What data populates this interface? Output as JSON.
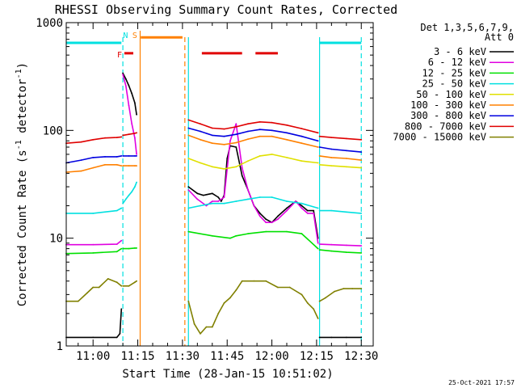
{
  "chart_data": {
    "type": "line",
    "title": "RHESSI Observing Summary Count Rates, Corrected",
    "xlabel": "Start Time (28-Jan-15 10:51:02)",
    "ylabel_main": "Corrected Count Rate (s",
    "ylabel_sup1": "-1",
    "ylabel_mid": " detector",
    "ylabel_sup2": "-1",
    "ylabel_end": ")",
    "yscale": "log",
    "ylim": [
      1,
      1000
    ],
    "xlim_min": [
      51.0,
      154.0
    ],
    "x_ticks": [
      {
        "min": 60,
        "label": "11:00"
      },
      {
        "min": 75,
        "label": "11:15"
      },
      {
        "min": 90,
        "label": "11:30"
      },
      {
        "min": 105,
        "label": "11:45"
      },
      {
        "min": 120,
        "label": "12:00"
      },
      {
        "min": 135,
        "label": "12:15"
      },
      {
        "min": 150,
        "label": "12:30"
      }
    ],
    "y_ticks": [
      {
        "v": 1,
        "label": "1"
      },
      {
        "v": 10,
        "label": "10"
      },
      {
        "v": 100,
        "label": "100"
      },
      {
        "v": 1000,
        "label": "1000"
      }
    ],
    "legend": {
      "placement": "top-right",
      "header1": "Det 1,3,5,6,7,9,",
      "header2": "Att 0"
    },
    "flag_labels": [
      {
        "label": "F",
        "min": 68.9,
        "color": "#e00000"
      },
      {
        "label": "N",
        "min": 70.9,
        "color": "#00e0e0"
      },
      {
        "label": "S",
        "min": 74.0,
        "color": "#ff8000"
      }
    ],
    "data_gaps": [
      {
        "start": 75.8,
        "end": 90.8,
        "solid_edge": "start",
        "color": "#ff8000"
      },
      {
        "start": 70.0,
        "end": 70.0,
        "dashed": true,
        "color": "#00e0e0"
      },
      {
        "start": 90.8,
        "end": 90.8,
        "dashed": true,
        "color": "#ff8000"
      },
      {
        "start": 92.0,
        "end": 92.0,
        "dashed": false,
        "color": "#00e0e0"
      },
      {
        "start": 136.0,
        "end": 136.0,
        "dashed": false,
        "color": "#00e0e0"
      },
      {
        "start": 150.0,
        "end": 150.0,
        "dashed": true,
        "color": "#00e0e0"
      }
    ],
    "flag_bars": [
      {
        "y": 650,
        "start": 51.0,
        "end": 69.5,
        "color": "#00e0e0"
      },
      {
        "y": 650,
        "start": 136.0,
        "end": 150.0,
        "color": "#00e0e0"
      },
      {
        "y": 520,
        "start": 70.5,
        "end": 73.5,
        "color": "#e00000"
      },
      {
        "y": 520,
        "start": 96.5,
        "end": 110.0,
        "color": "#e00000"
      },
      {
        "y": 520,
        "start": 114.5,
        "end": 122.0,
        "color": "#e00000"
      },
      {
        "y": 730,
        "start": 76.0,
        "end": 90.0,
        "color": "#ff8000"
      }
    ],
    "timestamp": "25-Oct-2021 17:57",
    "series": [
      {
        "name": "3 - 6 keV",
        "color": "#000000",
        "segments": [
          {
            "x": [
              51,
              60,
              68,
              69,
              69.5
            ],
            "y": [
              1.2,
              1.2,
              1.2,
              1.3,
              2.2
            ]
          },
          {
            "x": [
              70,
              71,
              72,
              73,
              74,
              74.6
            ],
            "y": [
              340,
              300,
              260,
              220,
              180,
              140
            ]
          },
          {
            "x": [
              92,
              95,
              97,
              100,
              102,
              103,
              104,
              105,
              106,
              108,
              110,
              112,
              114,
              116,
              118,
              120,
              122,
              125,
              128,
              130,
              132,
              134,
              135.5
            ],
            "y": [
              30,
              26,
              25,
              26,
              24,
              22,
              25,
              55,
              72,
              70,
              38,
              28,
              20,
              17,
              15,
              14,
              16,
              19,
              22,
              20,
              18,
              18,
              10
            ]
          },
          {
            "x": [
              136,
              140,
              145,
              150
            ],
            "y": [
              1.2,
              1.2,
              1.2,
              1.2
            ]
          }
        ]
      },
      {
        "name": "6 - 12 keV",
        "color": "#e000e0",
        "segments": [
          {
            "x": [
              51,
              60,
              68,
              69.5
            ],
            "y": [
              8.7,
              8.7,
              8.8,
              9.5
            ]
          },
          {
            "x": [
              70,
              71,
              72,
              73,
              74,
              74.6
            ],
            "y": [
              330,
              260,
              170,
              115,
              85,
              60
            ]
          },
          {
            "x": [
              92,
              95,
              98,
              100,
              102,
              104,
              106,
              108,
              110,
              112,
              114,
              116,
              118,
              120,
              122,
              125,
              128,
              130,
              132,
              134,
              135.5
            ],
            "y": [
              28,
              23,
              20,
              22,
              22,
              24,
              80,
              115,
              45,
              28,
              20,
              16,
              14,
              14,
              15,
              18,
              22,
              19,
              17,
              17,
              9
            ]
          },
          {
            "x": [
              136,
              140,
              145,
              150
            ],
            "y": [
              8.8,
              8.7,
              8.6,
              8.5
            ]
          }
        ]
      },
      {
        "name": "12 - 25 keV",
        "color": "#00e000",
        "segments": [
          {
            "x": [
              51,
              60,
              68,
              69.5
            ],
            "y": [
              7.2,
              7.3,
              7.5,
              8.0
            ]
          },
          {
            "x": [
              70,
              72,
              74,
              74.6
            ],
            "y": [
              8.0,
              8.0,
              8.1,
              8.1
            ]
          },
          {
            "x": [
              92,
              100,
              106,
              108,
              112,
              118,
              125,
              130,
              135.5
            ],
            "y": [
              11.5,
              10.5,
              10,
              10.5,
              11,
              11.5,
              11.5,
              11,
              8
            ]
          },
          {
            "x": [
              136,
              140,
              145,
              150
            ],
            "y": [
              7.8,
              7.6,
              7.4,
              7.3
            ]
          }
        ]
      },
      {
        "name": "25 - 50 keV",
        "color": "#00e0e0",
        "segments": [
          {
            "x": [
              51,
              60,
              68,
              69.5
            ],
            "y": [
              17,
              17,
              18,
              19
            ]
          },
          {
            "x": [
              70,
              71,
              72,
              73,
              74,
              74.6
            ],
            "y": [
              21,
              23,
              25,
              27,
              30,
              33
            ]
          },
          {
            "x": [
              92,
              96,
              100,
              104,
              108,
              112,
              116,
              120,
              125,
              130,
              135.5
            ],
            "y": [
              19,
              20,
              21,
              21,
              22,
              23,
              24,
              24,
              22,
              21,
              19
            ]
          },
          {
            "x": [
              136,
              140,
              145,
              150
            ],
            "y": [
              18,
              18,
              17.5,
              17
            ]
          }
        ]
      },
      {
        "name": "50 - 100 keV",
        "color": "#e0e000",
        "segments": [
          {
            "x": [
              92,
              96,
              100,
              104,
              108,
              112,
              116,
              120,
              125,
              130,
              135.5
            ],
            "y": [
              55,
              50,
              46,
              44,
              46,
              52,
              58,
              60,
              56,
              52,
              50
            ]
          },
          {
            "x": [
              136,
              140,
              145,
              150
            ],
            "y": [
              48,
              47,
              46,
              45
            ]
          }
        ]
      },
      {
        "name": "100 - 300 keV",
        "color": "#ff8000",
        "segments": [
          {
            "x": [
              51,
              56,
              60,
              64,
              68,
              69.5
            ],
            "y": [
              41,
              42,
              45,
              48,
              48,
              47
            ]
          },
          {
            "x": [
              70,
              72,
              74,
              74.6
            ],
            "y": [
              47,
              47,
              47,
              47
            ]
          },
          {
            "x": [
              92,
              96,
              100,
              104,
              108,
              112,
              116,
              120,
              125,
              130,
              135.5
            ],
            "y": [
              90,
              82,
              76,
              74,
              77,
              83,
              88,
              88,
              82,
              76,
              70
            ]
          },
          {
            "x": [
              136,
              140,
              145,
              150
            ],
            "y": [
              58,
              56,
              55,
              53
            ]
          }
        ]
      },
      {
        "name": "300 - 800 keV",
        "color": "#0000e0",
        "segments": [
          {
            "x": [
              51,
              56,
              60,
              64,
              68,
              69.5
            ],
            "y": [
              50,
              53,
              56,
              57,
              57,
              58
            ]
          },
          {
            "x": [
              70,
              72,
              74,
              74.6
            ],
            "y": [
              58,
              58,
              58,
              58
            ]
          },
          {
            "x": [
              92,
              96,
              100,
              104,
              108,
              112,
              116,
              120,
              125,
              130,
              135.5
            ],
            "y": [
              105,
              98,
              90,
              88,
              92,
              98,
              102,
              100,
              95,
              88,
              80
            ]
          },
          {
            "x": [
              136,
              140,
              145,
              150
            ],
            "y": [
              70,
              67,
              65,
              63
            ]
          }
        ]
      },
      {
        "name": "800 - 7000 keV",
        "color": "#e00000",
        "segments": [
          {
            "x": [
              51,
              56,
              60,
              64,
              68,
              69.5
            ],
            "y": [
              76,
              78,
              82,
              85,
              86,
              87
            ]
          },
          {
            "x": [
              70,
              72,
              74,
              74.6
            ],
            "y": [
              90,
              92,
              94,
              95
            ]
          },
          {
            "x": [
              92,
              96,
              100,
              104,
              108,
              112,
              116,
              120,
              125,
              130,
              135.5
            ],
            "y": [
              125,
              115,
              105,
              103,
              108,
              115,
              120,
              118,
              112,
              104,
              95
            ]
          },
          {
            "x": [
              136,
              140,
              145,
              150
            ],
            "y": [
              88,
              86,
              84,
              82
            ]
          }
        ]
      },
      {
        "name": "7000 - 15000 keV",
        "color": "#808000",
        "segments": [
          {
            "x": [
              51,
              55,
              58,
              60,
              62,
              65,
              68,
              69.5
            ],
            "y": [
              2.6,
              2.6,
              3.1,
              3.5,
              3.5,
              4.2,
              3.9,
              3.6
            ]
          },
          {
            "x": [
              70,
              72,
              74,
              74.6
            ],
            "y": [
              3.6,
              3.6,
              3.9,
              4.0
            ]
          },
          {
            "x": [
              92,
              94,
              96,
              98,
              100,
              102,
              104,
              106,
              108,
              110,
              114,
              118,
              122,
              126,
              130,
              132,
              134,
              135.5
            ],
            "y": [
              2.6,
              1.6,
              1.3,
              1.5,
              1.5,
              2.0,
              2.5,
              2.8,
              3.3,
              4.0,
              4.0,
              4.0,
              3.5,
              3.5,
              3.0,
              2.5,
              2.2,
              1.8
            ]
          },
          {
            "x": [
              136,
              138,
              141,
              144,
              147,
              150
            ],
            "y": [
              2.6,
              2.8,
              3.2,
              3.4,
              3.4,
              3.4
            ]
          }
        ]
      }
    ]
  }
}
